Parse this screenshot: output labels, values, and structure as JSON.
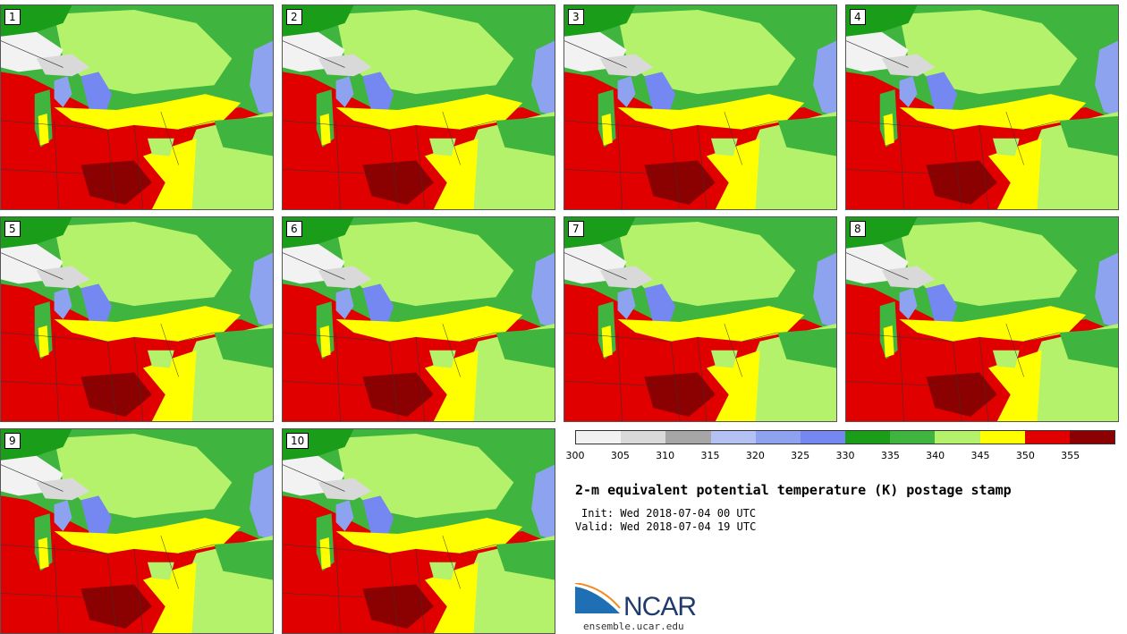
{
  "stamps": [
    {
      "label": "1"
    },
    {
      "label": "2"
    },
    {
      "label": "3"
    },
    {
      "label": "4"
    },
    {
      "label": "5"
    },
    {
      "label": "6"
    },
    {
      "label": "7"
    },
    {
      "label": "8"
    },
    {
      "label": "9"
    },
    {
      "label": "10"
    }
  ],
  "colorbar": {
    "colors": [
      "#f2f2f2",
      "#d9d9d9",
      "#a6a6a6",
      "#b3c2f2",
      "#8da3f0",
      "#7587f0",
      "#1a9e1a",
      "#3fb53f",
      "#b5f26b",
      "#ffff00",
      "#e00000",
      "#8b0000"
    ],
    "ticks": [
      "300",
      "305",
      "310",
      "315",
      "320",
      "325",
      "330",
      "335",
      "340",
      "345",
      "350",
      "355"
    ]
  },
  "title": "2-m equivalent potential temperature (K) postage stamp",
  "init": "Init: Wed 2018-07-04 00 UTC",
  "valid": "Valid: Wed 2018-07-04 19 UTC",
  "logo": {
    "text": "NCAR"
  },
  "site": "ensemble.ucar.edu"
}
